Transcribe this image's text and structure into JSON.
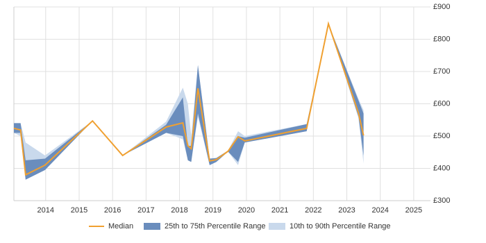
{
  "chart_data": {
    "type": "line",
    "x": [
      2013.05,
      2013.25,
      2013.4,
      2013.98,
      2015.4,
      2016.3,
      2017.6,
      2018.1,
      2018.25,
      2018.35,
      2018.55,
      2018.9,
      2019.1,
      2019.45,
      2019.75,
      2019.95,
      2021.8,
      2022.45,
      2023.35,
      2023.5
    ],
    "series": [
      {
        "name": "Median",
        "color": "#f0a030",
        "values": [
          524,
          519,
          380,
          410,
          547,
          440,
          528,
          541,
          470,
          461,
          648,
          423,
          427,
          453,
          498,
          485,
          524,
          848,
          571,
          502
        ]
      },
      {
        "name": "25th to 75th Percentile Range",
        "color": "#6a8dbd",
        "low": [
          510,
          510,
          365,
          395,
          547,
          440,
          510,
          500,
          425,
          420,
          570,
          410,
          420,
          452,
          420,
          480,
          515,
          848,
          560,
          440
        ],
        "high": [
          540,
          540,
          425,
          430,
          547,
          440,
          535,
          620,
          470,
          470,
          720,
          430,
          432,
          455,
          500,
          495,
          537,
          848,
          610,
          570
        ]
      },
      {
        "name": "10th to 90th Percentile Range",
        "color": "#c9d9ec",
        "low": [
          510,
          500,
          365,
          395,
          547,
          440,
          510,
          490,
          425,
          420,
          560,
          410,
          420,
          452,
          410,
          480,
          515,
          848,
          555,
          415
        ],
        "high": [
          540,
          540,
          480,
          440,
          547,
          440,
          545,
          650,
          600,
          500,
          720,
          430,
          432,
          455,
          515,
          500,
          537,
          848,
          615,
          580
        ]
      }
    ],
    "xlim": [
      2013.05,
      2025.5
    ],
    "xticks": [
      2014,
      2015,
      2016,
      2017,
      2018,
      2019,
      2020,
      2021,
      2022,
      2023,
      2024,
      2025
    ],
    "ylim": [
      300,
      900
    ],
    "yticks": [
      {
        "value": 300,
        "label": "£300"
      },
      {
        "value": 400,
        "label": "£400"
      },
      {
        "value": 500,
        "label": "£500"
      },
      {
        "value": 600,
        "label": "£600"
      },
      {
        "value": 700,
        "label": "£700"
      },
      {
        "value": 800,
        "label": "£800"
      },
      {
        "value": 900,
        "label": "£900"
      }
    ],
    "grid": true,
    "legend": "bottom"
  }
}
